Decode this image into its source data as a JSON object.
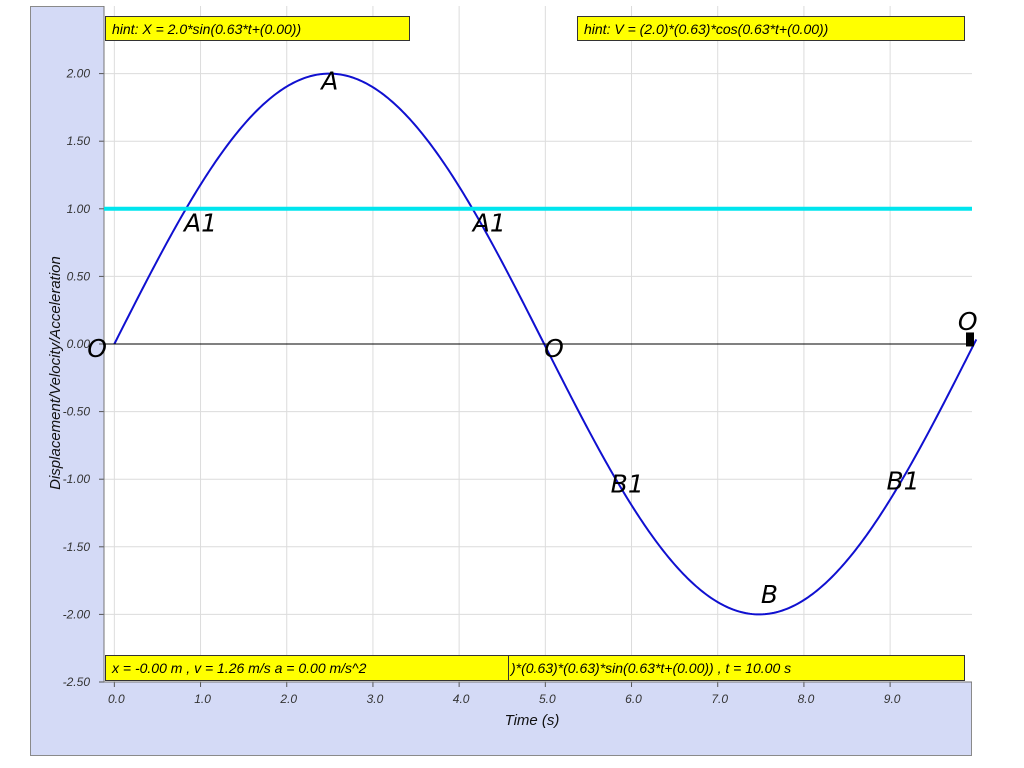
{
  "chart_data": {
    "type": "line",
    "xlabel": "Time (s)",
    "ylabel": "Displacement/Velocity/Acceleration",
    "xlim": [
      -0.12,
      9.95
    ],
    "ylim": [
      -2.5,
      2.5
    ],
    "x_ticks": [
      "0.0",
      "1.0",
      "2.0",
      "3.0",
      "4.0",
      "5.0",
      "6.0",
      "7.0",
      "8.0",
      "9.0"
    ],
    "y_ticks": [
      "2.00",
      "1.50",
      "1.00",
      "0.50",
      "0.00",
      "-0.50",
      "-1.00",
      "-1.50",
      "-2.00",
      "-2.50"
    ],
    "grid": true,
    "series": [
      {
        "type": "function",
        "amplitude": 2.0,
        "omega": 0.63,
        "phase": 0.0,
        "x_range": [
          0,
          10
        ],
        "color": "#1010d0"
      },
      {
        "type": "hline",
        "y": 1.0,
        "color": "#00e5ee"
      },
      {
        "type": "hline",
        "y": 0.0,
        "color": "#000000"
      }
    ],
    "annotations": [
      {
        "text": "A",
        "x": 2.5,
        "y": 1.95
      },
      {
        "text": "A1",
        "x": 1.0,
        "y": 0.9
      },
      {
        "text": "A1",
        "x": 4.35,
        "y": 0.9
      },
      {
        "text": "O",
        "x": -0.2,
        "y": -0.03
      },
      {
        "text": "O",
        "x": 5.1,
        "y": -0.03
      },
      {
        "text": "O",
        "x": 9.9,
        "y": 0.17
      },
      {
        "text": "B1",
        "x": 5.95,
        "y": -1.03
      },
      {
        "text": "B1",
        "x": 9.15,
        "y": -1.01
      },
      {
        "text": "B",
        "x": 7.6,
        "y": -1.85
      }
    ]
  },
  "hints": {
    "displacement": "hint: X = 2.0*sin(0.63*t+(0.00))",
    "velocity": "hint: V = (2.0)*(0.63)*cos(0.63*t+(0.00))",
    "acceleration_tail": ")*(0.63)*(0.63)*sin(0.63*t+(0.00)) , t = 10.00 s",
    "readout": "x = -0.00 m , v = 1.26 m/s a = 0.00 m/s^2"
  },
  "colors": {
    "panel": "#d4daf6",
    "plot_bg": "#ffffff",
    "grid": "#dcdcdc",
    "hint_bg": "#ffff00"
  }
}
